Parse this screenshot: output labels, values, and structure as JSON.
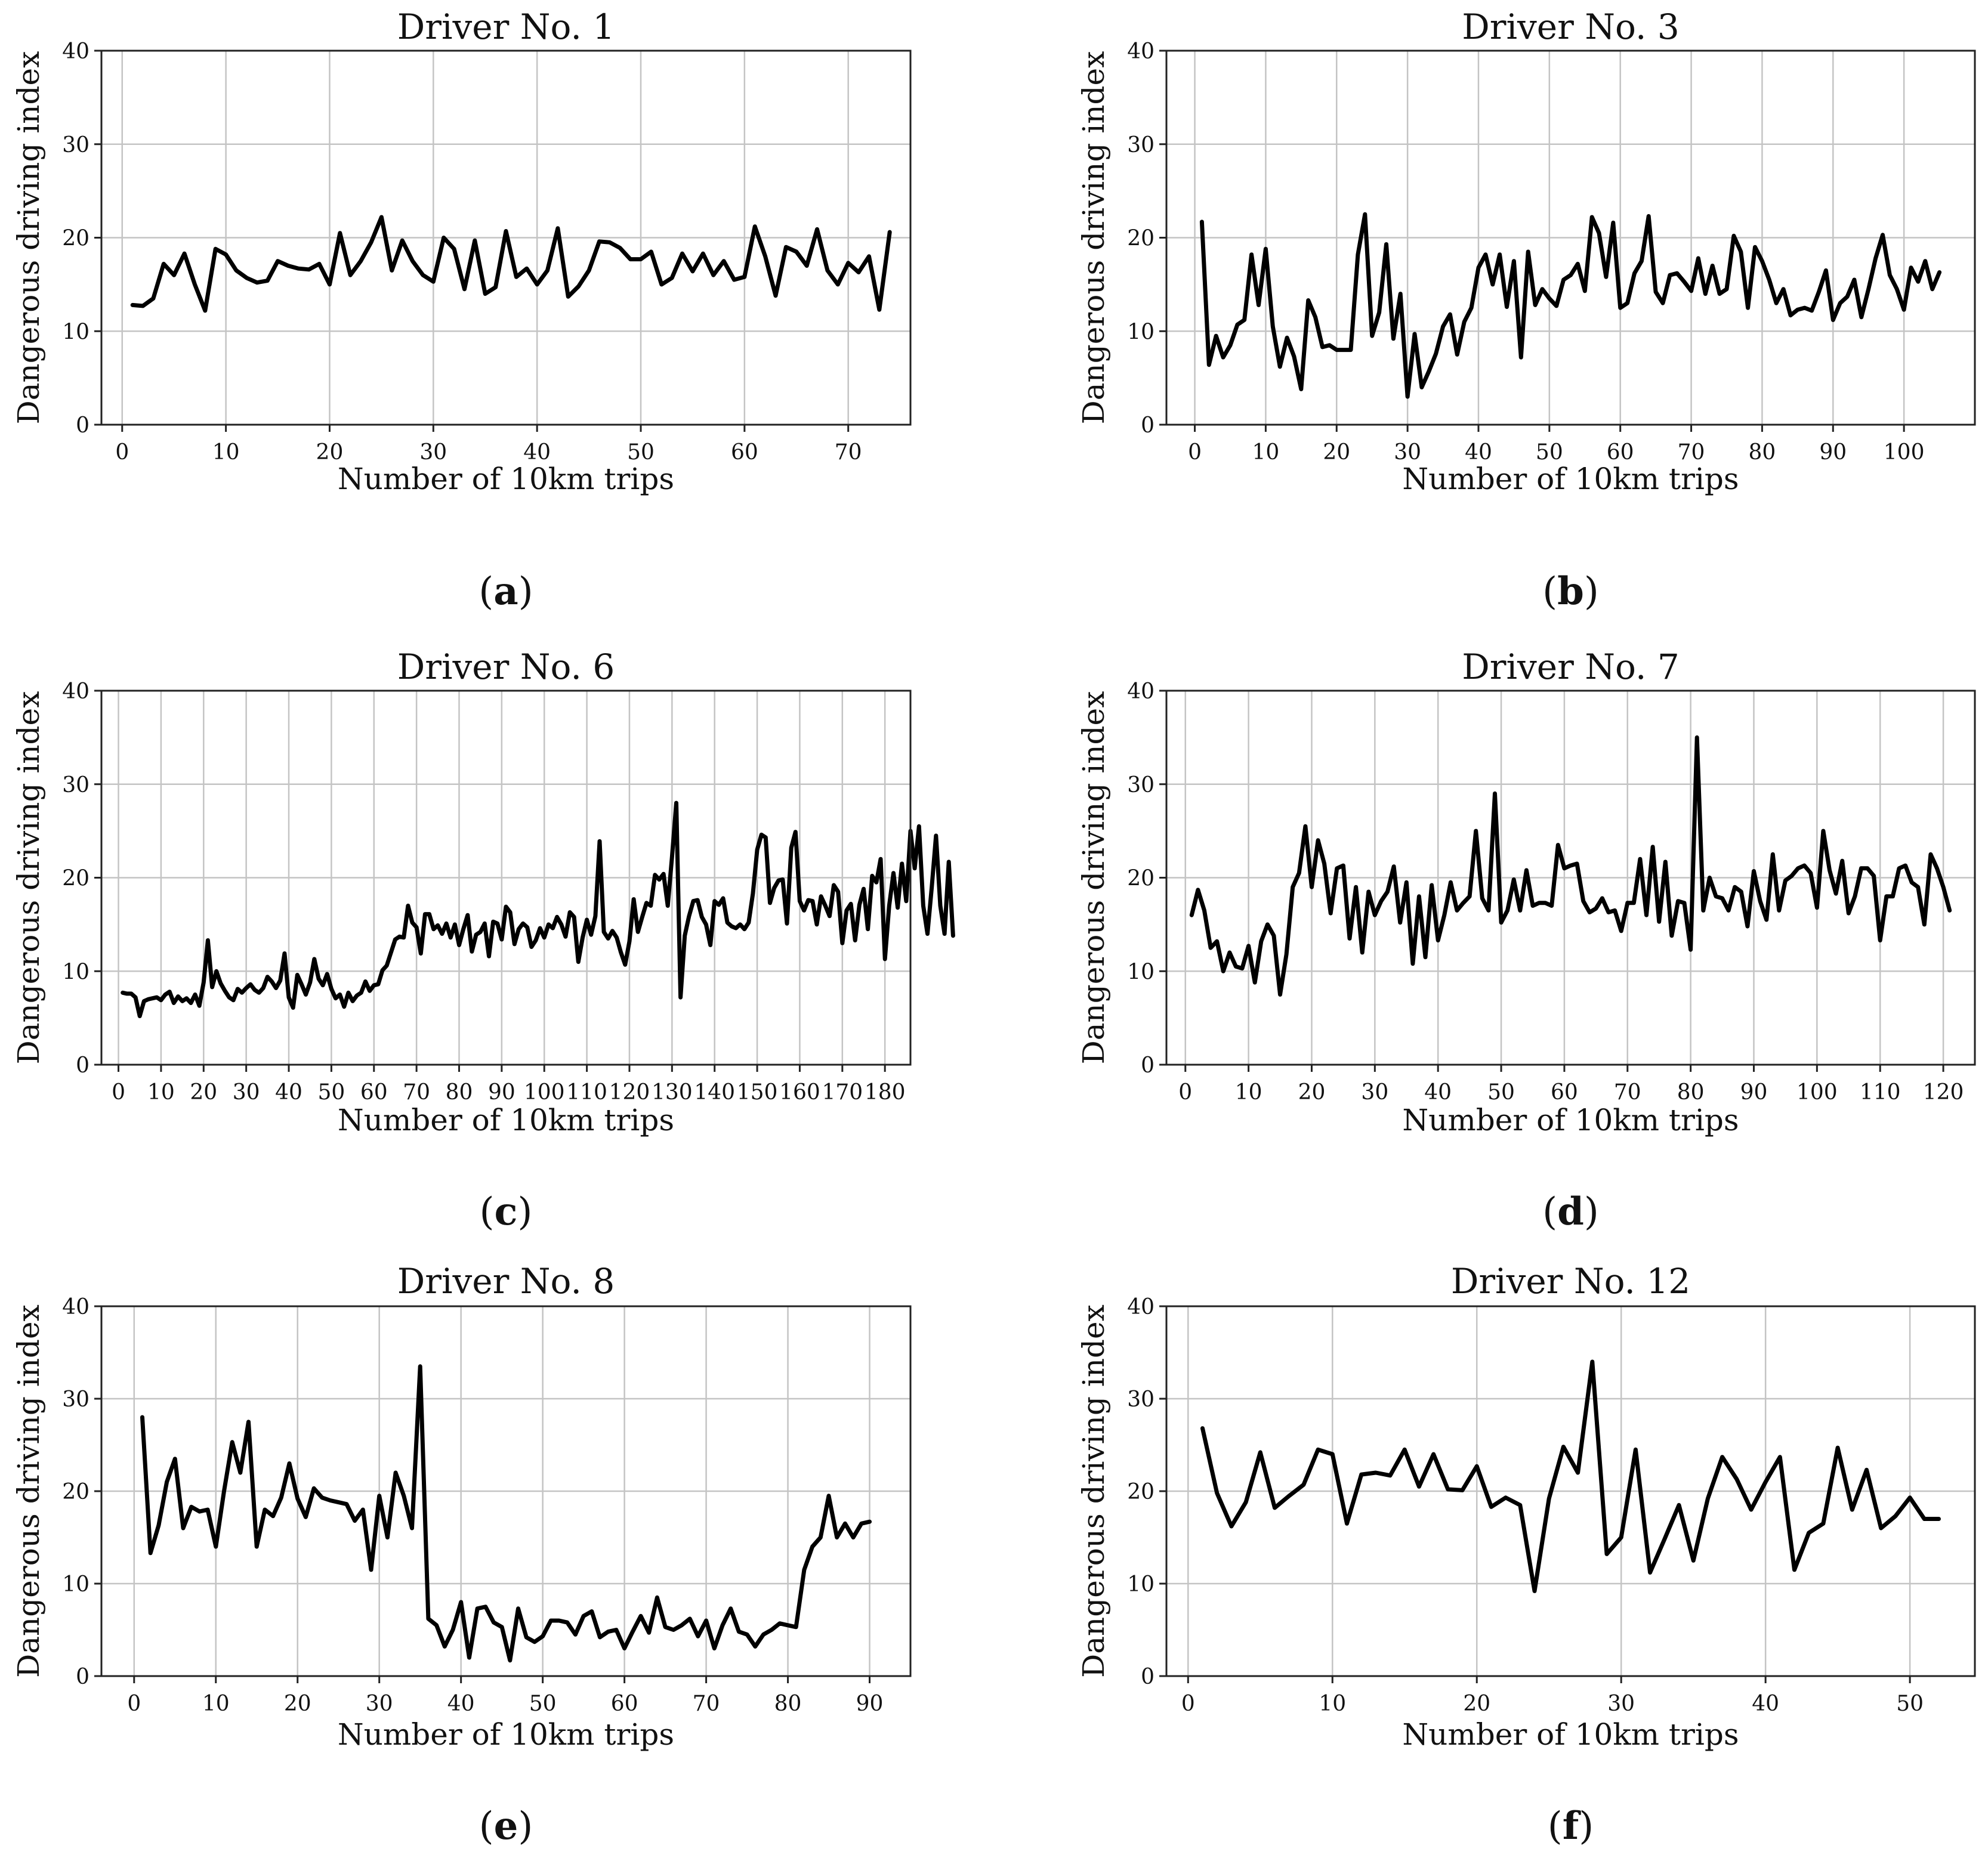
{
  "chart_data": [
    {
      "type": "line",
      "panel": "a",
      "title": "Driver No. 1",
      "xlabel": "Number of 10km trips",
      "ylabel": "Dangerous driving index",
      "xlim": [
        -2,
        76
      ],
      "ylim": [
        0,
        40
      ],
      "xticks": [
        0,
        10,
        20,
        30,
        40,
        50,
        60,
        70
      ],
      "yticks": [
        0,
        10,
        20,
        30,
        40
      ],
      "grid": true,
      "x_start": 1,
      "y": [
        12.8,
        12.7,
        13.5,
        17.2,
        16.0,
        18.3,
        15.0,
        12.2,
        18.8,
        18.2,
        16.5,
        15.7,
        15.2,
        15.4,
        17.5,
        17.0,
        16.7,
        16.6,
        17.2,
        15.0,
        20.5,
        16.0,
        17.5,
        19.5,
        22.2,
        16.5,
        19.7,
        17.5,
        16.0,
        15.3,
        20.0,
        18.8,
        14.5,
        19.7,
        14.0,
        14.7,
        20.7,
        15.8,
        16.7,
        15.0,
        16.5,
        21.0,
        13.7,
        14.8,
        16.5,
        19.6,
        19.5,
        18.9,
        17.7,
        17.7,
        18.5,
        15.0,
        15.7,
        18.3,
        16.4,
        18.3,
        16.0,
        17.5,
        15.5,
        15.8,
        21.2,
        18.0,
        13.8,
        19.0,
        18.5,
        17.0,
        20.9,
        16.5,
        15.0,
        17.3,
        16.3,
        18.0,
        12.3,
        20.6
      ]
    },
    {
      "type": "line",
      "panel": "b",
      "title": "Driver No. 3",
      "xlabel": "Number of 10km trips",
      "ylabel": "Dangerous driving index",
      "xlim": [
        -4,
        110
      ],
      "ylim": [
        0,
        40
      ],
      "xticks": [
        0,
        10,
        20,
        30,
        40,
        50,
        60,
        70,
        80,
        90,
        100
      ],
      "yticks": [
        0,
        10,
        20,
        30,
        40
      ],
      "grid": true,
      "x_start": 1,
      "y": [
        21.7,
        6.4,
        9.5,
        7.2,
        8.5,
        10.7,
        11.2,
        18.2,
        12.8,
        18.8,
        10.5,
        6.2,
        9.3,
        7.3,
        3.8,
        13.3,
        11.5,
        8.3,
        8.5,
        8.0,
        8.0,
        8.0,
        18.2,
        22.5,
        9.5,
        12.0,
        19.3,
        9.2,
        14.0,
        3.0,
        9.7,
        4.0,
        5.7,
        7.6,
        10.5,
        11.8,
        7.5,
        11.0,
        12.5,
        16.8,
        18.2,
        15.0,
        18.2,
        12.6,
        17.5,
        7.2,
        18.5,
        12.8,
        14.5,
        13.5,
        12.7,
        15.5,
        16.0,
        17.2,
        14.3,
        22.2,
        20.5,
        15.8,
        21.6,
        12.5,
        13.0,
        16.2,
        17.5,
        22.3,
        14.2,
        13.0,
        16.0,
        16.2,
        15.3,
        14.3,
        17.8,
        14.0,
        17.0,
        14.0,
        14.5,
        20.2,
        18.5,
        12.5,
        19.0,
        17.5,
        15.5,
        13.0,
        14.5,
        11.7,
        12.3,
        12.5,
        12.2,
        14.2,
        16.5,
        11.2,
        13.0,
        13.7,
        15.5,
        11.5,
        14.5,
        17.8,
        20.3,
        16.0,
        14.5,
        12.3,
        16.8,
        15.3,
        17.5,
        14.5,
        16.3
      ]
    },
    {
      "type": "line",
      "panel": "c",
      "title": "Driver No. 6",
      "xlabel": "Number of 10km trips",
      "ylabel": "Dangerous driving index",
      "xlim": [
        -4,
        186
      ],
      "ylim": [
        0,
        40
      ],
      "xticks": [
        0,
        10,
        20,
        30,
        40,
        50,
        60,
        70,
        80,
        90,
        100,
        110,
        120,
        130,
        140,
        150,
        160,
        170,
        180
      ],
      "yticks": [
        0,
        10,
        20,
        30,
        40
      ],
      "grid": true,
      "x_start": 1,
      "y": [
        7.7,
        7.6,
        7.6,
        7.2,
        5.2,
        6.8,
        7.0,
        7.1,
        7.2,
        6.9,
        7.5,
        7.8,
        6.6,
        7.3,
        6.8,
        7.1,
        6.6,
        7.5,
        6.3,
        8.8,
        13.3,
        8.3,
        10.0,
        8.7,
        7.9,
        7.2,
        6.9,
        8.1,
        7.7,
        8.2,
        8.6,
        8.0,
        7.7,
        8.2,
        9.4,
        8.9,
        8.2,
        9.0,
        11.9,
        7.2,
        6.1,
        9.6,
        8.6,
        7.5,
        8.8,
        11.3,
        9.2,
        8.5,
        9.7,
        8.1,
        7.1,
        7.5,
        6.2,
        7.7,
        6.8,
        7.4,
        7.7,
        8.9,
        7.9,
        8.5,
        8.6,
        10.1,
        10.6,
        12.0,
        13.4,
        13.7,
        13.6,
        17.0,
        15.2,
        14.7,
        11.9,
        16.1,
        16.1,
        14.5,
        14.9,
        14.0,
        15.1,
        13.6,
        15.0,
        12.8,
        14.5,
        16.0,
        12.1,
        13.9,
        14.2,
        15.1,
        11.6,
        15.3,
        15.1,
        13.4,
        16.9,
        16.3,
        12.9,
        14.5,
        15.1,
        14.7,
        12.6,
        13.3,
        14.6,
        13.6,
        15.0,
        14.6,
        15.8,
        15.0,
        13.7,
        16.3,
        15.8,
        11.0,
        13.6,
        15.5,
        13.9,
        15.9,
        23.9,
        14.2,
        13.5,
        14.3,
        13.6,
        12.0,
        10.7,
        13.2,
        17.7,
        14.2,
        15.8,
        17.3,
        17.0,
        20.3,
        19.8,
        20.4,
        17.0,
        22.2,
        28.0,
        7.2,
        13.8,
        15.9,
        17.5,
        17.6,
        15.8,
        15.0,
        12.8,
        17.5,
        17.1,
        17.8,
        15.2,
        14.8,
        14.6,
        15.0,
        14.5,
        15.2,
        18.3,
        23.0,
        24.6,
        24.3,
        17.3,
        18.9,
        19.7,
        19.8,
        15.1,
        23.2,
        24.9,
        17.5,
        16.5,
        17.6,
        17.5,
        15.0,
        18.0,
        17.0,
        15.9,
        19.2,
        18.5,
        13.0,
        16.5,
        17.2,
        13.3,
        17.1,
        18.8,
        14.5,
        20.2,
        19.5,
        22.0,
        11.3,
        17.0,
        20.5,
        16.8,
        21.5,
        17.5,
        25.0,
        21.0,
        25.5,
        17.0,
        14.0,
        19.0,
        24.5,
        17.0,
        14.0,
        21.7,
        13.8
      ]
    },
    {
      "type": "line",
      "panel": "d",
      "title": "Driver No. 7",
      "xlabel": "Number of 10km trips",
      "ylabel": "Dangerous driving index",
      "xlim": [
        -3,
        125
      ],
      "ylim": [
        0,
        40
      ],
      "xticks": [
        0,
        10,
        20,
        30,
        40,
        50,
        60,
        70,
        80,
        90,
        100,
        110,
        120
      ],
      "yticks": [
        0,
        10,
        20,
        30,
        40
      ],
      "grid": true,
      "x_start": 1,
      "y": [
        16.0,
        18.7,
        16.5,
        12.5,
        13.2,
        10.0,
        12.0,
        10.5,
        10.3,
        12.7,
        8.8,
        13.2,
        15.0,
        13.8,
        7.5,
        11.8,
        19.0,
        20.5,
        25.5,
        19.0,
        24.0,
        21.5,
        16.2,
        21.0,
        21.3,
        13.5,
        19.0,
        12.0,
        18.5,
        16.0,
        17.5,
        18.5,
        21.2,
        15.2,
        19.5,
        10.8,
        18.0,
        11.5,
        19.2,
        13.3,
        16.0,
        19.5,
        16.5,
        17.3,
        18.0,
        25.0,
        17.8,
        16.5,
        29.0,
        15.2,
        16.5,
        19.8,
        16.5,
        20.8,
        17.0,
        17.3,
        17.3,
        17.0,
        23.5,
        21.0,
        21.3,
        21.5,
        17.5,
        16.3,
        16.7,
        17.8,
        16.3,
        16.5,
        14.3,
        17.3,
        17.3,
        22.0,
        16.0,
        23.3,
        15.3,
        21.7,
        13.8,
        17.5,
        17.3,
        12.3,
        35.0,
        16.5,
        20.0,
        18.0,
        17.8,
        16.5,
        19.0,
        18.5,
        14.8,
        20.7,
        17.5,
        15.5,
        22.5,
        16.5,
        19.7,
        20.2,
        21.0,
        21.3,
        20.5,
        16.8,
        25.0,
        20.8,
        18.3,
        21.8,
        16.2,
        18.0,
        21.0,
        21.0,
        20.2,
        13.3,
        18.0,
        18.0,
        21.0,
        21.3,
        19.5,
        19.0,
        15.0,
        22.5,
        21.0,
        19.0,
        16.5
      ]
    },
    {
      "type": "line",
      "panel": "e",
      "title": "Driver No. 8",
      "xlabel": "Number of 10km trips",
      "ylabel": "Dangerous driving index",
      "xlim": [
        -4,
        95
      ],
      "ylim": [
        0,
        40
      ],
      "xticks": [
        0,
        10,
        20,
        30,
        40,
        50,
        60,
        70,
        80,
        90
      ],
      "yticks": [
        0,
        10,
        20,
        30,
        40
      ],
      "grid": true,
      "x_start": 1,
      "y": [
        28.0,
        13.3,
        16.3,
        21.0,
        23.5,
        16.0,
        18.3,
        17.8,
        18.0,
        14.0,
        20.0,
        25.3,
        22.0,
        27.5,
        14.0,
        18.0,
        17.3,
        19.3,
        23.0,
        19.2,
        17.2,
        20.3,
        19.3,
        19.0,
        18.8,
        18.6,
        16.8,
        18.0,
        11.5,
        19.5,
        15.0,
        22.0,
        19.5,
        16.0,
        33.5,
        6.2,
        5.5,
        3.2,
        5.0,
        8.0,
        2.0,
        7.3,
        7.5,
        5.8,
        5.3,
        1.7,
        7.3,
        4.2,
        3.7,
        4.3,
        6.0,
        6.0,
        5.8,
        4.5,
        6.5,
        7.0,
        4.2,
        4.8,
        5.0,
        3.0,
        4.8,
        6.5,
        4.7,
        8.5,
        5.3,
        5.0,
        5.5,
        6.2,
        4.3,
        6.0,
        3.0,
        5.5,
        7.3,
        4.8,
        4.5,
        3.2,
        4.5,
        5.0,
        5.7,
        5.5,
        5.3,
        11.5,
        14.0,
        15.0,
        19.5,
        15.0,
        16.5,
        15.0,
        16.5,
        16.7
      ]
    },
    {
      "type": "line",
      "panel": "f",
      "title": "Driver No. 12",
      "xlabel": "Number of 10km trips",
      "ylabel": "Dangerous driving index",
      "xlim": [
        -1.5,
        54.5
      ],
      "ylim": [
        0,
        40
      ],
      "xticks": [
        0,
        10,
        20,
        30,
        40,
        50
      ],
      "yticks": [
        0,
        10,
        20,
        30,
        40
      ],
      "grid": true,
      "x_start": 1,
      "y": [
        26.8,
        19.8,
        16.2,
        18.8,
        24.2,
        18.2,
        19.5,
        20.7,
        24.5,
        24.0,
        16.5,
        21.8,
        22.0,
        21.7,
        24.5,
        20.5,
        24.0,
        20.2,
        20.1,
        22.7,
        18.3,
        19.3,
        18.5,
        9.2,
        19.2,
        24.8,
        22.0,
        34.0,
        13.2,
        15.0,
        24.5,
        11.2,
        14.8,
        18.5,
        12.5,
        19.2,
        23.7,
        21.3,
        18.0,
        21.0,
        23.7,
        11.5,
        15.5,
        16.5,
        24.7,
        18.0,
        22.3,
        16.0,
        17.3,
        19.3,
        17.0,
        17.0
      ]
    }
  ],
  "panel_labels": [
    "(a)",
    "(b)",
    "(c)",
    "(d)",
    "(e)",
    "(f)"
  ]
}
